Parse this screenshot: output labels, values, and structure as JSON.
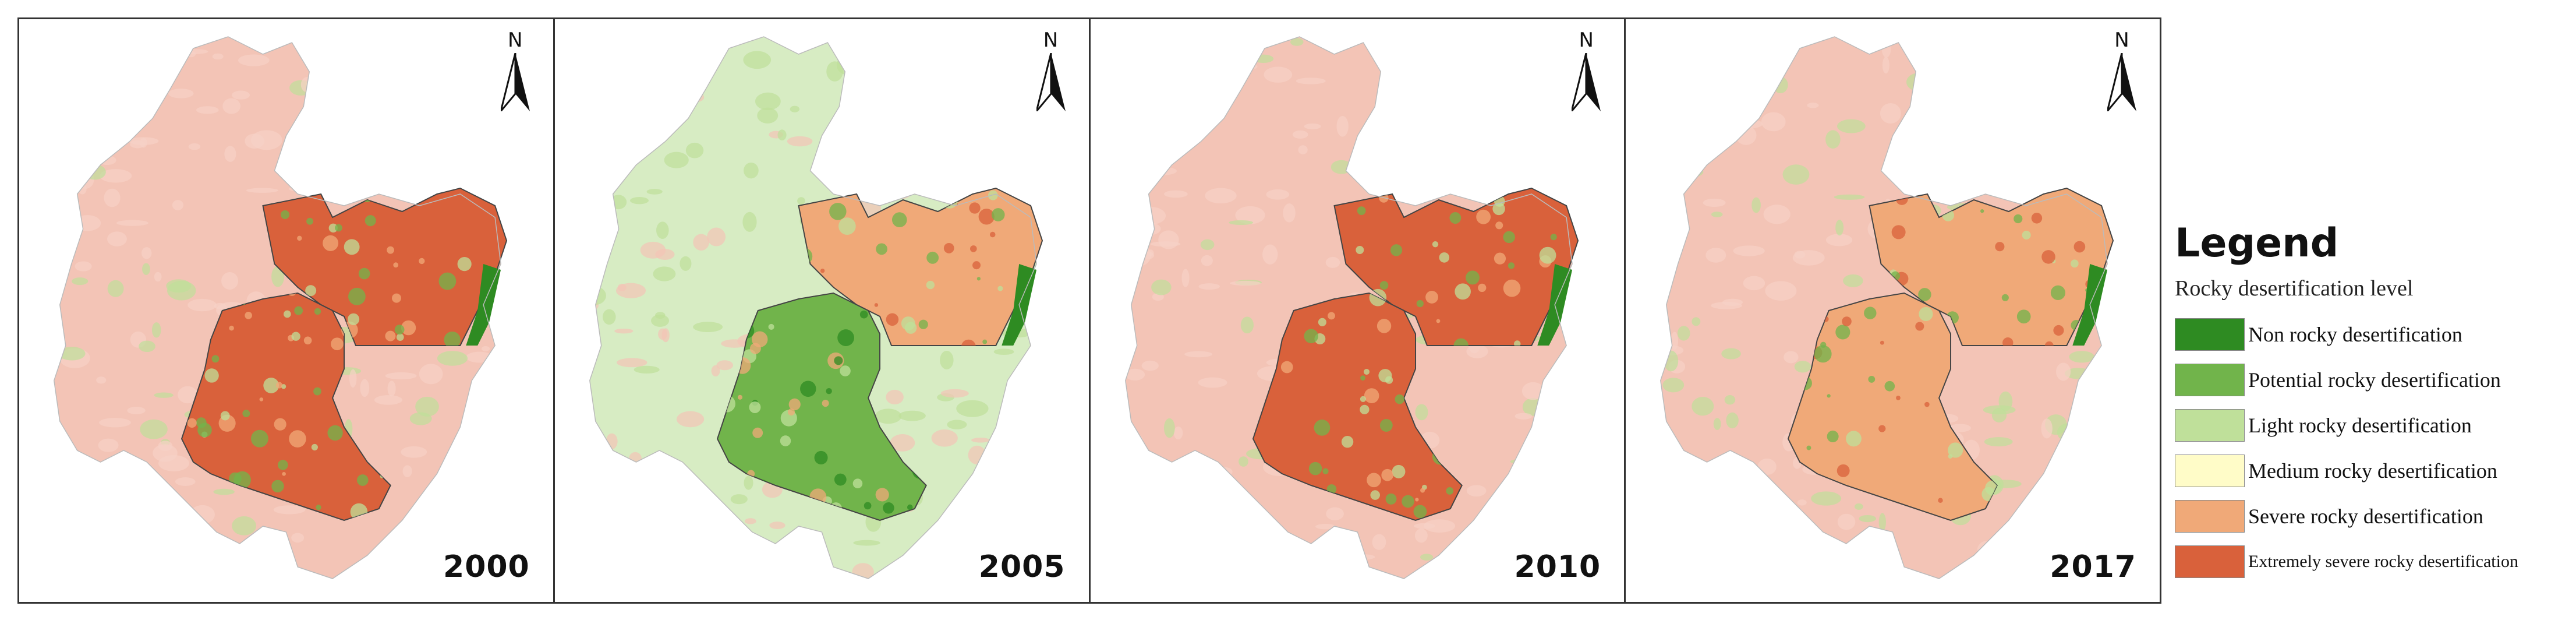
{
  "colors": {
    "non": "#2e8b22",
    "potential": "#71b44b",
    "light": "#bfe09a",
    "medium": "#fffcc8",
    "severe": "#f0a978",
    "extreme": "#d9613b",
    "outer_light_green": "#d7ecc3",
    "outer_pink": "#f3c4b6",
    "outline": "#444444"
  },
  "north_letter": "N",
  "panels": [
    {
      "year": "2000",
      "outer_tone": "pink",
      "levels": {
        "northeast": "extreme",
        "southwest": "extreme",
        "east_strip": "non"
      }
    },
    {
      "year": "2005",
      "outer_tone": "green",
      "levels": {
        "northeast": "severe",
        "southwest": "potential",
        "east_strip": "non"
      }
    },
    {
      "year": "2010",
      "outer_tone": "pink",
      "levels": {
        "northeast": "extreme",
        "southwest": "extreme",
        "east_strip": "non"
      }
    },
    {
      "year": "2017",
      "outer_tone": "mixed",
      "levels": {
        "northeast": "severe",
        "southwest": "severe",
        "east_strip": "non"
      }
    }
  ],
  "legend": {
    "title": "Legend",
    "subtitle": "Rocky desertification level",
    "items": [
      {
        "key": "non",
        "label": "Non rocky desertification",
        "color": "#2e8b22"
      },
      {
        "key": "potential",
        "label": "Potential rocky desertification",
        "color": "#71b44b"
      },
      {
        "key": "light",
        "label": "Light rocky desertification",
        "color": "#bfe09a"
      },
      {
        "key": "medium",
        "label": "Medium rocky desertification",
        "color": "#fffcc8"
      },
      {
        "key": "severe",
        "label": "Severe rocky desertification",
        "color": "#f0a978"
      },
      {
        "key": "extreme",
        "label": "Extremely severe rocky desertification",
        "color": "#d9613b"
      }
    ]
  }
}
